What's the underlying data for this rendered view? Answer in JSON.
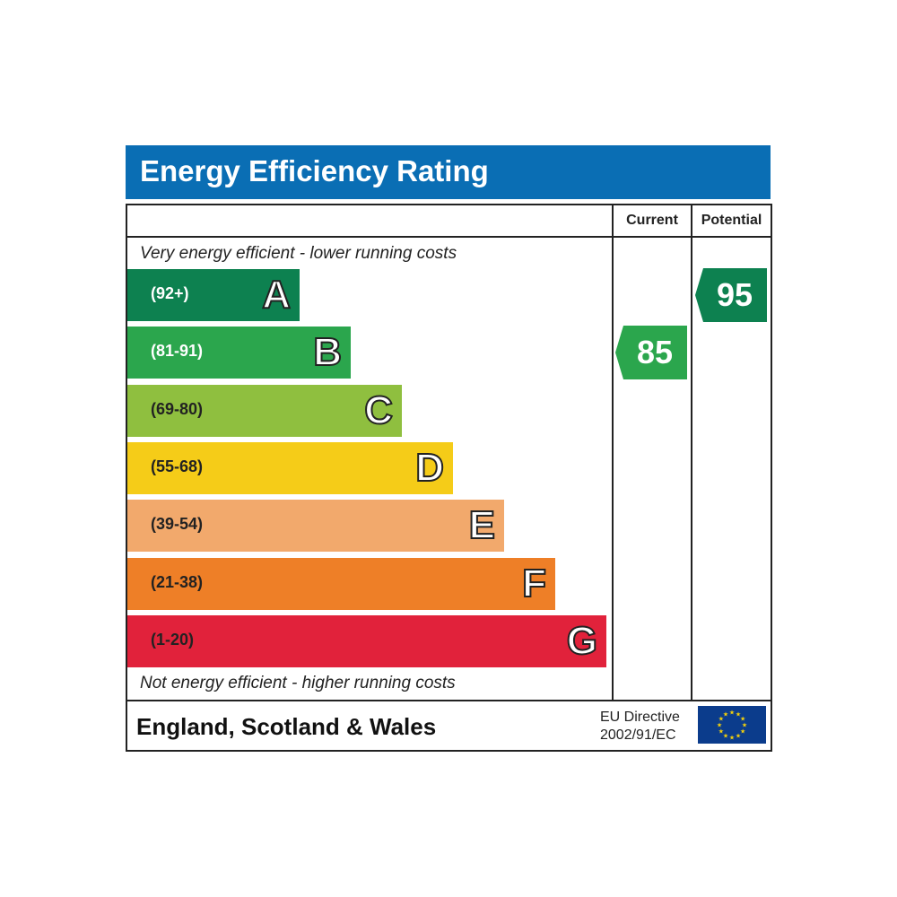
{
  "chart_data": {
    "type": "bar",
    "title": "Energy Efficiency Rating",
    "top_caption": "Very energy efficient - lower running costs",
    "bottom_caption": "Not energy efficient - higher running costs",
    "columns": {
      "current": "Current",
      "potential": "Potential"
    },
    "bands": [
      {
        "letter": "A",
        "range": "(92+)",
        "min": 92,
        "max": 100,
        "color": "#0d8150",
        "text_color": "#ffffff"
      },
      {
        "letter": "B",
        "range": "(81-91)",
        "min": 81,
        "max": 91,
        "color": "#2ba64d",
        "text_color": "#ffffff"
      },
      {
        "letter": "C",
        "range": "(69-80)",
        "min": 69,
        "max": 80,
        "color": "#8fbf3f",
        "text_color": "#222222"
      },
      {
        "letter": "D",
        "range": "(55-68)",
        "min": 55,
        "max": 68,
        "color": "#f5cc18",
        "text_color": "#222222"
      },
      {
        "letter": "E",
        "range": "(39-54)",
        "min": 39,
        "max": 54,
        "color": "#f2a96c",
        "text_color": "#222222"
      },
      {
        "letter": "F",
        "range": "(21-38)",
        "min": 21,
        "max": 38,
        "color": "#ee7f27",
        "text_color": "#222222"
      },
      {
        "letter": "G",
        "range": "(1-20)",
        "min": 1,
        "max": 20,
        "color": "#e1223b",
        "text_color": "#222222"
      }
    ],
    "current": {
      "value": 85,
      "band": "B",
      "color": "#2ba64d"
    },
    "potential": {
      "value": 95,
      "band": "A",
      "color": "#0d8150"
    }
  },
  "footer": {
    "region": "England, Scotland & Wales",
    "directive_line1": "EU Directive",
    "directive_line2": "2002/91/EC"
  },
  "header_color": "#0a6eb4"
}
